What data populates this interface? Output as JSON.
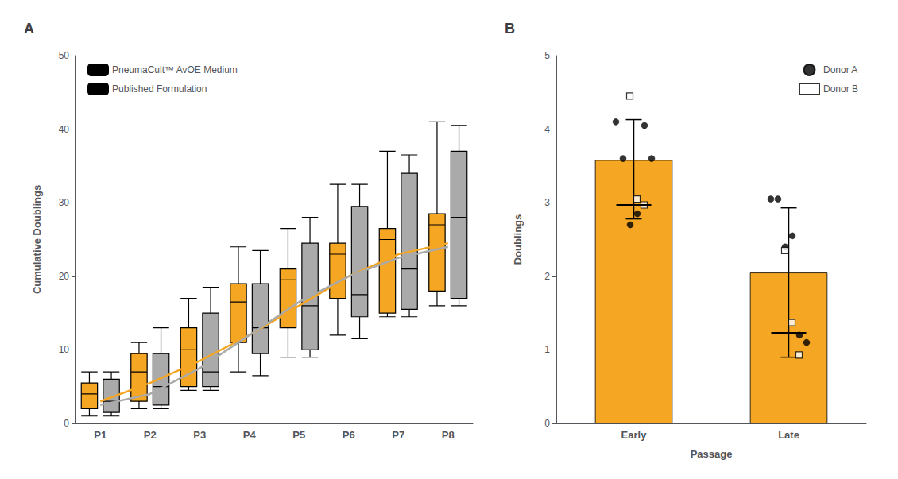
{
  "chart_data": [
    {
      "type": "boxplot",
      "title": "A",
      "categories": [
        "P1",
        "P2",
        "P3",
        "P4",
        "P5",
        "P6",
        "P7",
        "P8"
      ],
      "ylabel": "Cumulative Doublings",
      "ylim": [
        0,
        50
      ],
      "yticks": [
        0,
        10,
        20,
        30,
        40,
        50
      ],
      "grid": false,
      "legend": "upper left",
      "series": [
        {
          "name": "PneumaCult™ AvOE Medium",
          "color": "#F5A623",
          "q1": [
            2.0,
            3.0,
            5.0,
            11.0,
            13.0,
            17.0,
            15.0,
            18.0
          ],
          "median": [
            4.0,
            7.0,
            10.0,
            16.5,
            19.5,
            23.0,
            25.0,
            27.0
          ],
          "q3": [
            5.5,
            9.5,
            13.0,
            19.0,
            21.0,
            24.5,
            26.5,
            28.5
          ],
          "whisker_low": [
            1.0,
            2.0,
            4.5,
            7.0,
            9.0,
            12.0,
            14.5,
            16.0
          ],
          "whisker_high": [
            7.0,
            11.0,
            17.0,
            24.0,
            26.5,
            32.5,
            37.0,
            41.0
          ],
          "trend_values": [
            3.0,
            5.5,
            8.5,
            12.0,
            16.0,
            20.0,
            23.0,
            24.5
          ]
        },
        {
          "name": "Published Formulation",
          "color": "#AAAAAA",
          "q1": [
            1.5,
            2.5,
            5.0,
            9.5,
            10.0,
            14.5,
            15.5,
            17.0
          ],
          "median": [
            3.0,
            5.0,
            7.0,
            13.0,
            16.0,
            17.5,
            21.0,
            28.0
          ],
          "q3": [
            6.0,
            9.5,
            15.0,
            19.0,
            24.5,
            29.5,
            34.0,
            37.0
          ],
          "whisker_low": [
            1.0,
            2.0,
            4.5,
            6.5,
            9.0,
            11.5,
            14.5,
            16.0
          ],
          "whisker_high": [
            7.0,
            13.0,
            18.5,
            23.5,
            28.0,
            32.5,
            36.5,
            40.5
          ],
          "trend_values": [
            2.5,
            4.0,
            7.5,
            12.0,
            16.5,
            20.0,
            22.5,
            24.0
          ]
        }
      ]
    },
    {
      "type": "bar",
      "title": "B",
      "categories": [
        "Early",
        "Late"
      ],
      "values": [
        3.58,
        2.05
      ],
      "color": "#F5A623",
      "error_up": [
        0.55,
        0.88
      ],
      "error_down": [
        0.8,
        1.15
      ],
      "medians": [
        2.97,
        1.23
      ],
      "xlabel": "Passage",
      "ylabel": "Doublings",
      "ylim": [
        0,
        5
      ],
      "yticks": [
        0,
        1,
        2,
        3,
        4,
        5
      ],
      "grid": false,
      "legend": "upper right",
      "points": [
        {
          "name": "Donor A",
          "marker": "circle",
          "color": "#000000",
          "values": [
            [
              4.1,
              3.6,
              2.7,
              2.85,
              4.05,
              3.6
            ],
            [
              3.05,
              3.05,
              2.4,
              2.55,
              1.2,
              1.1
            ]
          ]
        },
        {
          "name": "Donor B",
          "marker": "open_square",
          "color": "#000000",
          "values": [
            [
              4.45,
              3.05,
              2.97
            ],
            [
              2.35,
              1.37,
              0.93
            ]
          ]
        }
      ]
    }
  ]
}
